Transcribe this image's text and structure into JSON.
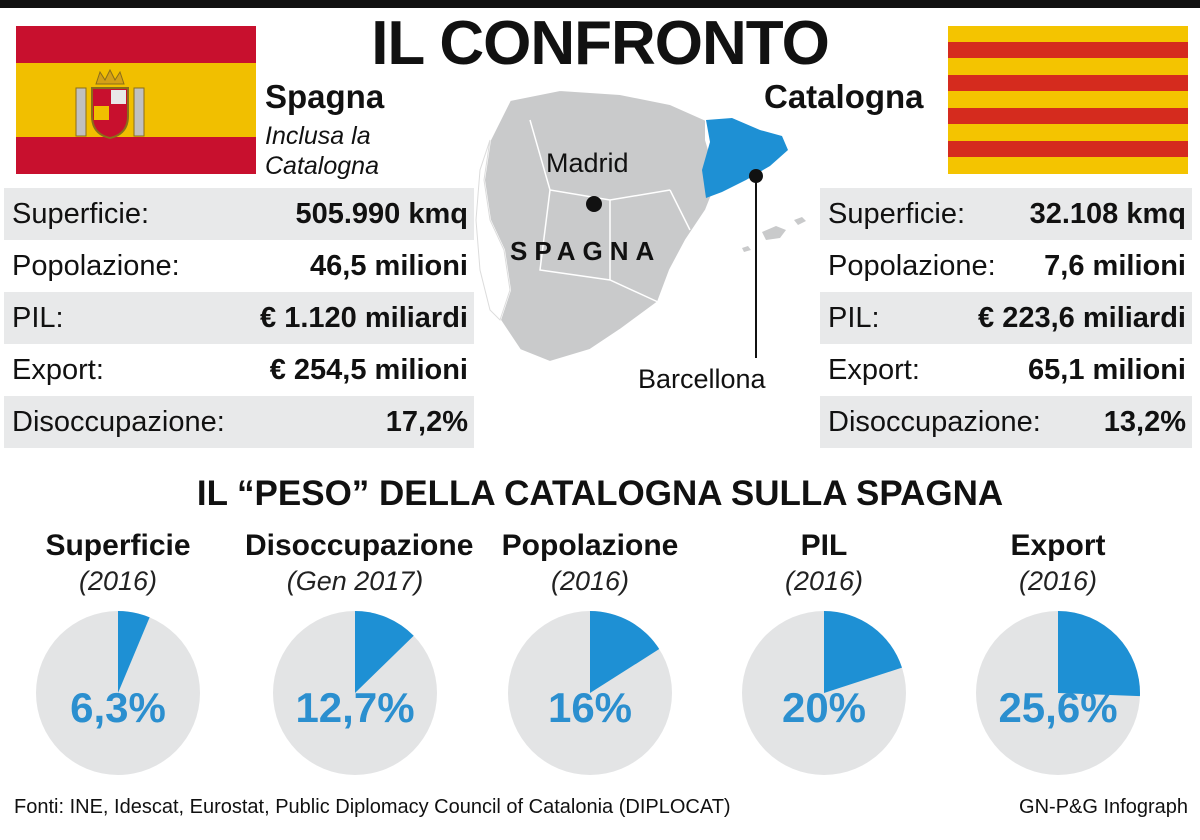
{
  "title": "IL CONFRONTO",
  "colors": {
    "accent": "#2b8fcf",
    "catalonia_map": "#1e90d4",
    "map_grey": "#c9cacb",
    "pie_grey": "#e3e4e5",
    "row_shade": "#e8e9ea"
  },
  "spain": {
    "name": "Spagna",
    "note_line1": "Inclusa la",
    "note_line2": "Catalogna",
    "flag_icon": "spain-flag-icon",
    "stats": [
      {
        "label": "Superficie:",
        "value": "505.990 kmq"
      },
      {
        "label": "Popolazione:",
        "value": "46,5 milioni"
      },
      {
        "label": "PIL:",
        "value": "€ 1.120 miliardi"
      },
      {
        "label": "Export:",
        "value": "€ 254,5 milioni"
      },
      {
        "label": "Disoccupazione:",
        "value": "17,2%"
      }
    ]
  },
  "catalonia": {
    "name": "Catalogna",
    "flag_icon": "catalonia-flag-icon",
    "stats": [
      {
        "label": "Superficie:",
        "value": "32.108 kmq"
      },
      {
        "label": "Popolazione:",
        "value": "7,6 milioni"
      },
      {
        "label": "PIL:",
        "value": "€ 223,6 miliardi"
      },
      {
        "label": "Export:",
        "value": "65,1 milioni"
      },
      {
        "label": "Disoccupazione:",
        "value": "13,2%"
      }
    ]
  },
  "map": {
    "country_label": "SPAGNA",
    "capital_label": "Madrid",
    "city_label": "Barcellona"
  },
  "section_title": "IL “PESO” DELLA CATALOGNA SULLA SPAGNA",
  "shares": [
    {
      "title": "Superficie",
      "year": "(2016)",
      "value_label": "6,3%",
      "percent": 6.3
    },
    {
      "title": "Disoccupazione",
      "year": "(Gen 2017)",
      "value_label": "12,7%",
      "percent": 12.7
    },
    {
      "title": "Popolazione",
      "year": "(2016)",
      "value_label": "16%",
      "percent": 16
    },
    {
      "title": "PIL",
      "year": "(2016)",
      "value_label": "20%",
      "percent": 20
    },
    {
      "title": "Export",
      "year": "(2016)",
      "value_label": "25,6%",
      "percent": 25.6
    }
  ],
  "footer": {
    "sources": "Fonti: INE, Idescat, Eurostat, Public Diplomacy Council of Catalonia (DIPLOCAT)",
    "credit": "GN-P&G Infograph"
  }
}
